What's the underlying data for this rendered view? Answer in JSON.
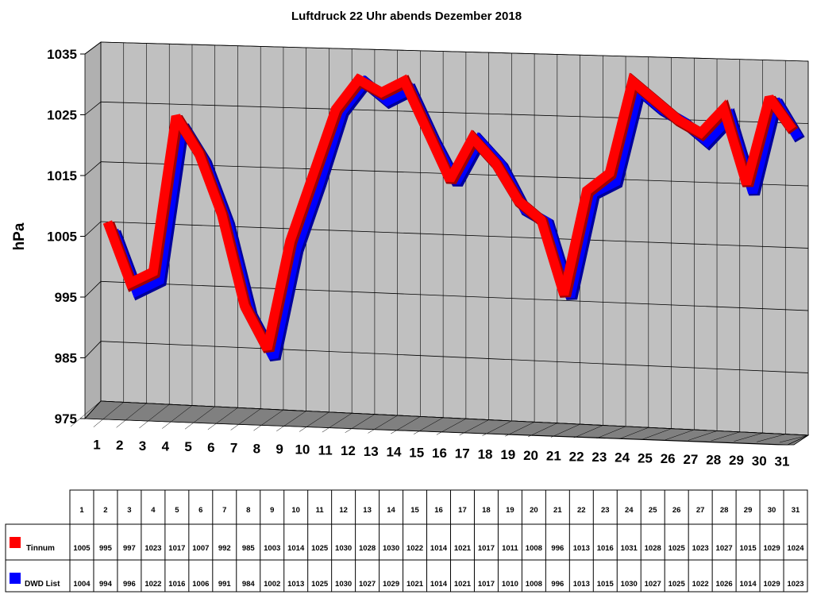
{
  "chart_data": {
    "type": "line",
    "title": "Luftdruck 22 Uhr abends Dezember 2018",
    "ylabel": "hPa",
    "ylim": [
      975,
      1035
    ],
    "yticks": [
      "975",
      "985",
      "995",
      "1005",
      "1015",
      "1025",
      "1035"
    ],
    "categories": [
      "1",
      "2",
      "3",
      "4",
      "5",
      "6",
      "7",
      "8",
      "9",
      "10",
      "11",
      "12",
      "13",
      "14",
      "15",
      "16",
      "17",
      "18",
      "19",
      "20",
      "21",
      "22",
      "23",
      "24",
      "25",
      "26",
      "27",
      "28",
      "29",
      "30",
      "31"
    ],
    "grid": true,
    "three_d": true,
    "legend": "table below chart",
    "series": [
      {
        "name": "Tinnum",
        "color": "#ff0000",
        "values": [
          1005,
          995,
          997,
          1023,
          1017,
          1007,
          992,
          985,
          1003,
          1014,
          1025,
          1030,
          1028,
          1030,
          1022,
          1014,
          1021,
          1017,
          1011,
          1008,
          996,
          1013,
          1016,
          1031,
          1028,
          1025,
          1023,
          1027,
          1015,
          1029,
          1024
        ]
      },
      {
        "name": "DWD List",
        "color": "#0000ff",
        "values": [
          1004,
          994,
          996,
          1022,
          1016,
          1006,
          991,
          984,
          1002,
          1013,
          1025,
          1030,
          1027,
          1029,
          1021,
          1014,
          1021,
          1017,
          1010,
          1008,
          996,
          1013,
          1015,
          1030,
          1027,
          1025,
          1022,
          1026,
          1014,
          1029,
          1023
        ]
      }
    ]
  }
}
